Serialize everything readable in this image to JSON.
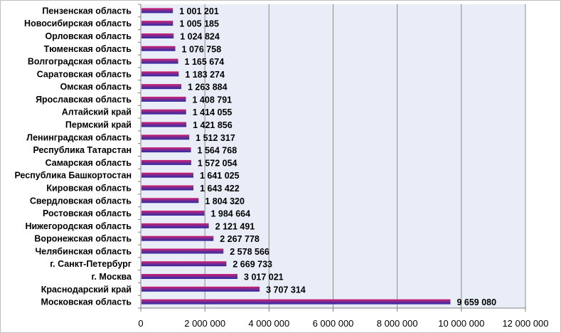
{
  "chart_data": {
    "type": "bar",
    "orientation": "horizontal",
    "categories": [
      "Пензенская область",
      "Новосибирская область",
      "Орловская область",
      "Тюменская область",
      "Волгоградская область",
      "Саратовская область",
      "Омская область",
      "Ярославская область",
      "Алтайский край",
      "Пермский край",
      "Ленинградская область",
      "Республика Татарстан",
      "Самарская область",
      "Республика Башкортостан",
      "Кировская область",
      "Свердловская область",
      "Ростовская область",
      "Нижегородская область",
      "Воронежская область",
      "Челябинская область",
      "г. Санкт-Петербург",
      "г. Москва",
      "Краснодарский край",
      "Московская область"
    ],
    "values": [
      1001201,
      1005185,
      1024824,
      1076758,
      1165674,
      1183274,
      1263884,
      1408791,
      1414055,
      1421856,
      1512317,
      1564768,
      1572054,
      1641025,
      1643422,
      1804320,
      1984664,
      2121491,
      2267778,
      2578566,
      2669733,
      3017021,
      3707314,
      9659080
    ],
    "value_labels": [
      "1 001 201",
      "1 005 185",
      "1 024 824",
      "1 076 758",
      "1 165 674",
      "1 183 274",
      "1 263 884",
      "1 408 791",
      "1 414 055",
      "1 421 856",
      "1 512 317",
      "1 564 768",
      "1 572 054",
      "1 641 025",
      "1 643 422",
      "1 804 320",
      "1 984 664",
      "2 121 491",
      "2 267 778",
      "2 578 566",
      "2 669 733",
      "3 017 021",
      "3 707 314",
      "9 659 080"
    ],
    "xlim": [
      0,
      12000000
    ],
    "xticks": [
      0,
      2000000,
      4000000,
      6000000,
      8000000,
      10000000,
      12000000
    ],
    "xtick_labels": [
      "0",
      "2 000 000",
      "4 000 000",
      "6 000 000",
      "8 000 000",
      "10 000 000",
      "12 000 000"
    ],
    "grid": true,
    "legend": "none",
    "title": "",
    "xlabel": "",
    "ylabel": "",
    "colors": {
      "plot_background": "#e9edf7",
      "bar_top": "#cc1d6b",
      "bar_bottom": "#2b2aa0",
      "gridline": "#8c8c8c"
    }
  }
}
